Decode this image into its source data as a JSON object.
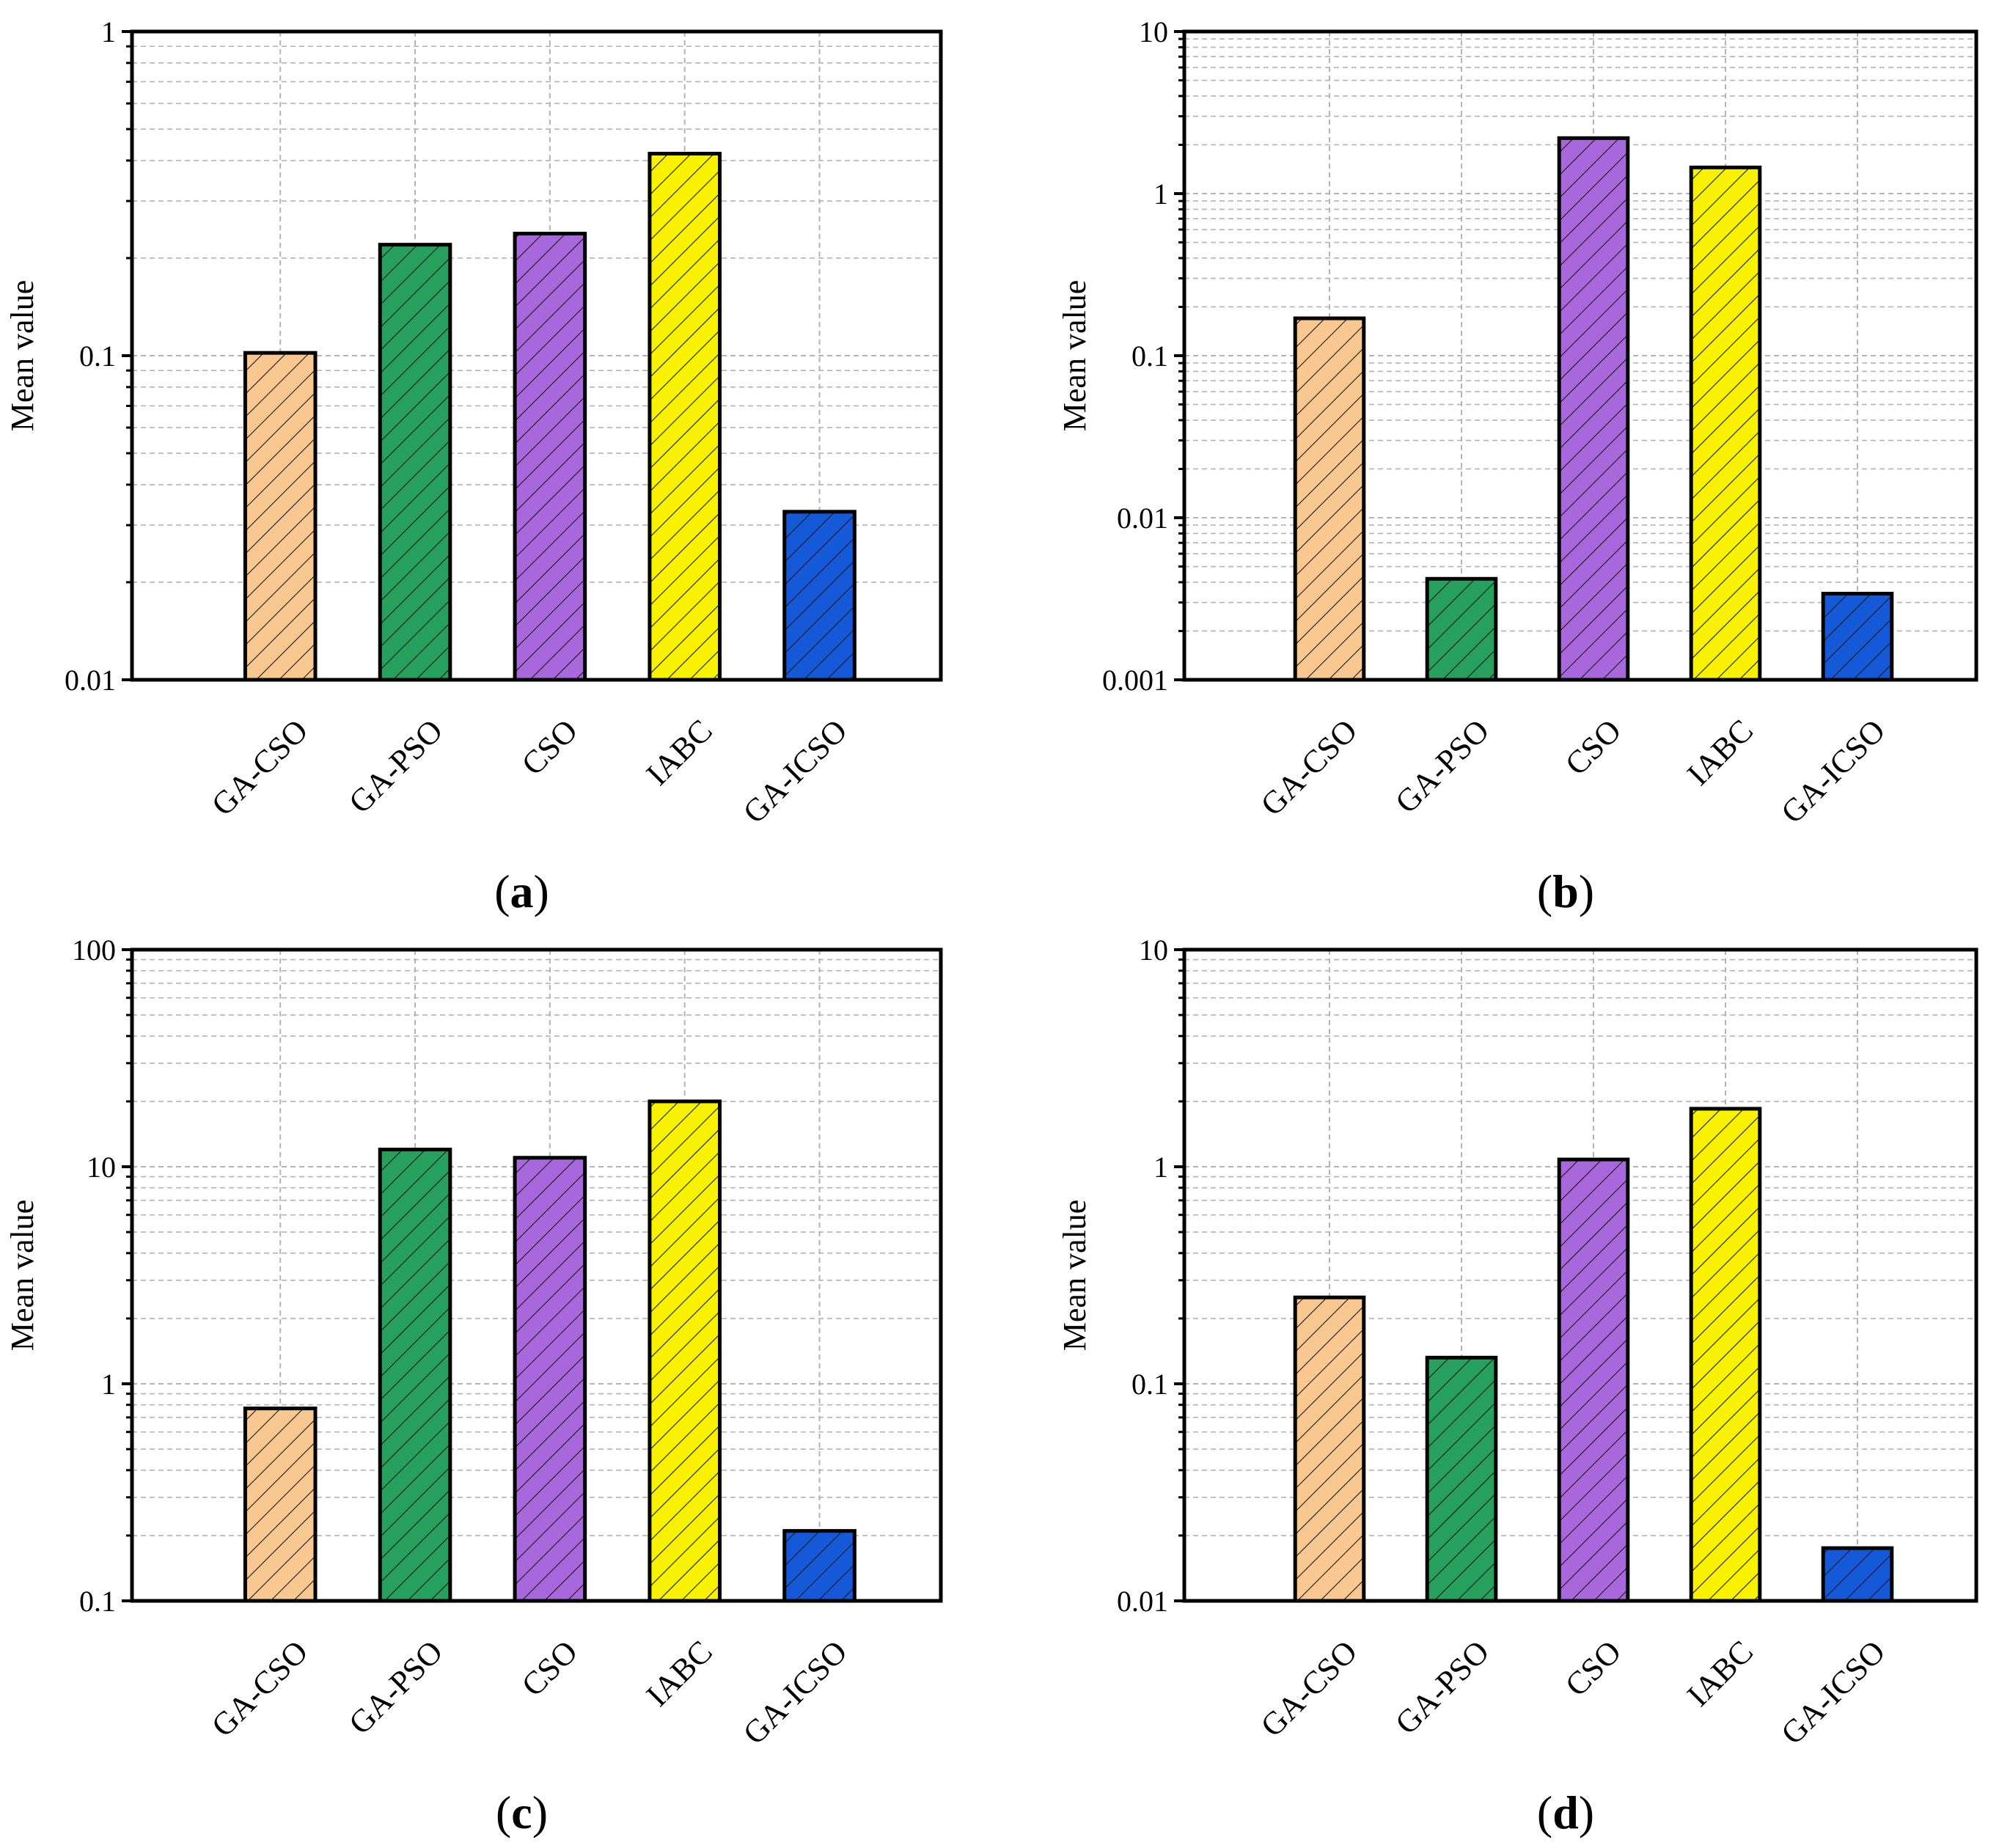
{
  "figure": {
    "type": "bar_grid"
  },
  "colors": {
    "GA-CSO": "#F9C891",
    "GA-PSO": "#27A05E",
    "CSO": "#A867DB",
    "IABC": "#F8F200",
    "GA-ICSO": "#1559D9",
    "grid": "#b4b4b4",
    "axis": "#000000"
  },
  "chart_data": [
    {
      "id": "a",
      "type": "bar",
      "panel_label_letter": "a",
      "panel_label_open": "(",
      "panel_label_close": ")",
      "yscale": "log",
      "ylim": [
        0.01,
        1
      ],
      "yticks": [
        0.01,
        0.1,
        1
      ],
      "ytick_labels": [
        "0.01",
        "0.1",
        "1"
      ],
      "ylabel": "Mean value",
      "xlabel": "",
      "grid": true,
      "categories": [
        "GA-CSO",
        "GA-PSO",
        "CSO",
        "IABC",
        "GA-ICSO"
      ],
      "values": [
        0.102,
        0.22,
        0.238,
        0.42,
        0.033
      ]
    },
    {
      "id": "b",
      "type": "bar",
      "panel_label_letter": "b",
      "panel_label_open": "(",
      "panel_label_close": ")",
      "yscale": "log",
      "ylim": [
        0.001,
        10
      ],
      "yticks": [
        0.001,
        0.01,
        0.1,
        1,
        10
      ],
      "ytick_labels": [
        "0.001",
        "0.01",
        "0.1",
        "1",
        "10"
      ],
      "ylabel": "Mean value",
      "xlabel": "",
      "grid": true,
      "categories": [
        "GA-CSO",
        "GA-PSO",
        "CSO",
        "IABC",
        "GA-ICSO"
      ],
      "values": [
        0.17,
        0.0042,
        2.2,
        1.45,
        0.0034
      ]
    },
    {
      "id": "c",
      "type": "bar",
      "panel_label_letter": "c",
      "panel_label_open": "(",
      "panel_label_close": ")",
      "yscale": "log",
      "ylim": [
        0.1,
        100
      ],
      "yticks": [
        0.1,
        1,
        10,
        100
      ],
      "ytick_labels": [
        "0.1",
        "1",
        "10",
        "100"
      ],
      "ylabel": "Mean value",
      "xlabel": "",
      "grid": true,
      "categories": [
        "GA-CSO",
        "GA-PSO",
        "CSO",
        "IABC",
        "GA-ICSO"
      ],
      "values": [
        0.77,
        12,
        11,
        20,
        0.21
      ]
    },
    {
      "id": "d",
      "type": "bar",
      "panel_label_letter": "d",
      "panel_label_open": "(",
      "panel_label_close": ")",
      "yscale": "log",
      "ylim": [
        0.01,
        10
      ],
      "yticks": [
        0.01,
        0.1,
        1,
        10
      ],
      "ytick_labels": [
        "0.01",
        "0.1",
        "1",
        "10"
      ],
      "ylabel": "Mean value",
      "xlabel": "",
      "grid": true,
      "categories": [
        "GA-CSO",
        "GA-PSO",
        "CSO",
        "IABC",
        "GA-ICSO"
      ],
      "values": [
        0.25,
        0.132,
        1.08,
        1.85,
        0.0175
      ]
    }
  ]
}
